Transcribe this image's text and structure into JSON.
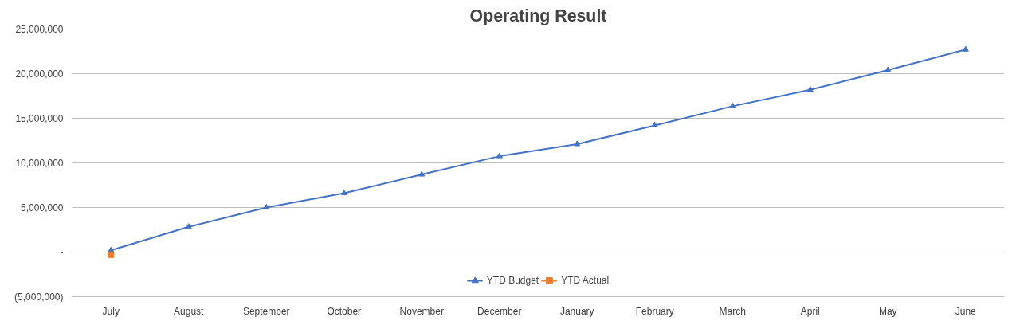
{
  "chart_data": {
    "type": "line",
    "title": "Operating Result",
    "categories": [
      "July",
      "August",
      "September",
      "October",
      "November",
      "December",
      "January",
      "February",
      "March",
      "April",
      "May",
      "June"
    ],
    "series": [
      {
        "name": "YTD Budget",
        "color": "#4472c4",
        "marker": "triangle",
        "values": [
          200000,
          2840000,
          5000000,
          6600000,
          8700000,
          10750000,
          12100000,
          14200000,
          16350000,
          18200000,
          20400000,
          22700000
        ]
      },
      {
        "name": "YTD Actual",
        "color": "#ed7d31",
        "marker": "square",
        "values": [
          -300000,
          null,
          null,
          null,
          null,
          null,
          null,
          null,
          null,
          null,
          null,
          null
        ]
      }
    ],
    "ylim": [
      -5000000,
      25000000
    ],
    "yticks": [
      {
        "value": -5000000,
        "label": "(5,000,000)"
      },
      {
        "value": 0,
        "label": "-"
      },
      {
        "value": 5000000,
        "label": "5,000,000"
      },
      {
        "value": 10000000,
        "label": "10,000,000"
      },
      {
        "value": 15000000,
        "label": "15,000,000"
      },
      {
        "value": 20000000,
        "label": "20,000,000"
      },
      {
        "value": 25000000,
        "label": "25,000,000"
      }
    ],
    "grid": "y",
    "legend": "bottom",
    "line_style": "solid"
  }
}
